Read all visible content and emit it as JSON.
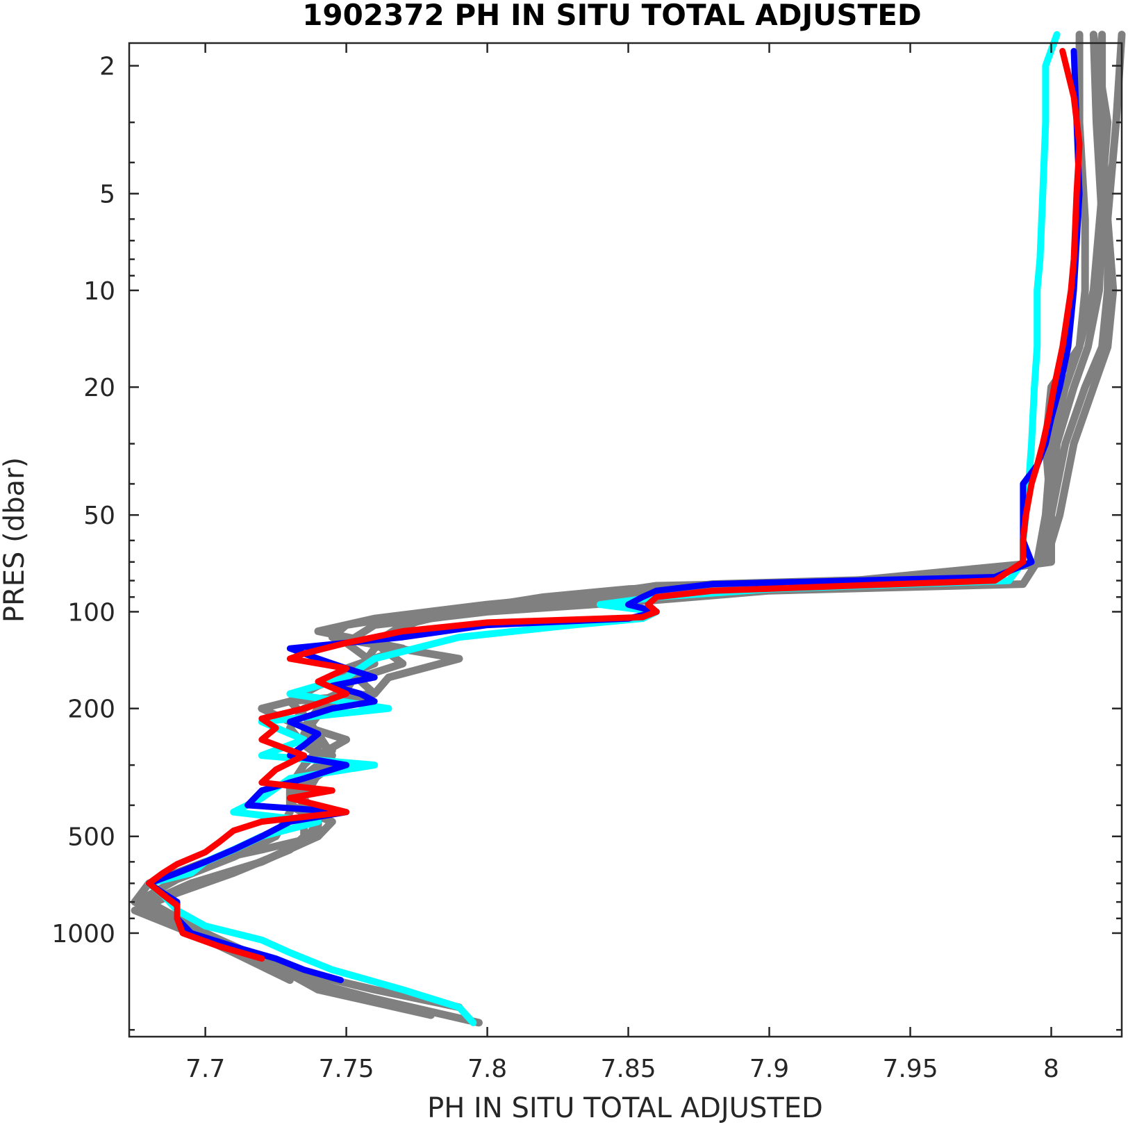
{
  "chart_data": {
    "type": "line",
    "title": "1902372  PH IN SITU TOTAL ADJUSTED",
    "xlabel": "PH IN SITU TOTAL ADJUSTED",
    "ylabel": "PRES (dbar)",
    "xlim": [
      7.673,
      8.025
    ],
    "ylim": [
      1.7,
      2100
    ],
    "y_scale": "log",
    "y_reversed": true,
    "grid": false,
    "x_ticks": [
      7.7,
      7.75,
      7.8,
      7.85,
      7.9,
      7.95,
      8.0
    ],
    "x_tick_labels": [
      "7.7",
      "7.75",
      "7.8",
      "7.85",
      "7.9",
      "7.95",
      "8"
    ],
    "y_ticks": [
      2,
      5,
      10,
      20,
      50,
      100,
      200,
      500,
      1000
    ],
    "y_tick_labels": [
      "2",
      "5",
      "10",
      "20",
      "50",
      "100",
      "200",
      "500",
      "1000"
    ],
    "colors": {
      "history": "#808080",
      "cyan": "#00ffff",
      "blue": "#0000ff",
      "red": "#ff0000"
    },
    "series": [
      {
        "color_key": "history",
        "pres": [
          1.6,
          3,
          5,
          10,
          15,
          20,
          30,
          50,
          70,
          80,
          83,
          88,
          95,
          105,
          115,
          130,
          150,
          180,
          190,
          200,
          220,
          250,
          280,
          300,
          350,
          400,
          450,
          500,
          550,
          600,
          700,
          800,
          1000,
          1200,
          1400,
          1600,
          1900
        ],
        "ph": [
          8.015,
          8.02,
          8.018,
          8.015,
          8.01,
          8.0,
          7.998,
          8.0,
          8.0,
          7.95,
          7.86,
          7.84,
          7.8,
          7.76,
          7.74,
          7.77,
          7.75,
          7.76,
          7.73,
          7.72,
          7.73,
          7.75,
          7.74,
          7.745,
          7.735,
          7.73,
          7.74,
          7.74,
          7.72,
          7.7,
          7.68,
          7.675,
          7.7,
          7.72,
          7.735,
          7.76,
          7.797
        ]
      },
      {
        "color_key": "history",
        "pres": [
          1.6,
          3,
          6,
          10,
          15,
          20,
          30,
          50,
          70,
          78,
          82,
          87,
          92,
          100,
          110,
          120,
          140,
          160,
          180,
          200,
          230,
          270,
          300,
          350,
          400,
          450,
          500,
          600,
          700,
          800,
          1000,
          1200,
          1500,
          1800
        ],
        "ph": [
          8.025,
          8.023,
          8.02,
          8.02,
          8.018,
          8.012,
          8.005,
          8.0,
          7.995,
          7.97,
          7.88,
          7.85,
          7.82,
          7.78,
          7.75,
          7.745,
          7.79,
          7.765,
          7.76,
          7.74,
          7.735,
          7.74,
          7.735,
          7.73,
          7.73,
          7.745,
          7.74,
          7.72,
          7.695,
          7.68,
          7.7,
          7.72,
          7.74,
          7.78
        ]
      },
      {
        "color_key": "history",
        "pres": [
          1.6,
          3,
          6,
          10,
          15,
          20,
          30,
          50,
          70,
          80,
          84,
          90,
          100,
          110,
          125,
          145,
          165,
          185,
          210,
          240,
          270,
          300,
          350,
          400,
          450,
          500,
          550,
          650,
          750,
          850,
          1000,
          1100,
          1300,
          1500,
          1700
        ],
        "ph": [
          8.018,
          8.018,
          8.02,
          8.022,
          8.02,
          8.015,
          8.008,
          8.003,
          7.998,
          7.96,
          7.87,
          7.845,
          7.79,
          7.77,
          7.76,
          7.77,
          7.75,
          7.75,
          7.74,
          7.735,
          7.745,
          7.74,
          7.73,
          7.735,
          7.735,
          7.735,
          7.73,
          7.71,
          7.69,
          7.675,
          7.695,
          7.71,
          7.73,
          7.76,
          7.79
        ]
      },
      {
        "color_key": "history",
        "pres": [
          1.6,
          3,
          6,
          10,
          15,
          20,
          30,
          50,
          70,
          82,
          86,
          92,
          100,
          110,
          125,
          145,
          170,
          190,
          210,
          240,
          280,
          320,
          380,
          450,
          520,
          600,
          700,
          800,
          950,
          1150,
          1400
        ],
        "ph": [
          8.01,
          8.01,
          8.012,
          8.012,
          8.01,
          8.005,
          8.0,
          7.998,
          7.995,
          7.99,
          7.9,
          7.86,
          7.8,
          7.76,
          7.75,
          7.76,
          7.74,
          7.73,
          7.735,
          7.74,
          7.745,
          7.74,
          7.735,
          7.74,
          7.735,
          7.72,
          7.695,
          7.68,
          7.69,
          7.71,
          7.73
        ]
      },
      {
        "color_key": "history",
        "pres": [
          1.6,
          3,
          6,
          10,
          15,
          20,
          30,
          50,
          70,
          80,
          85,
          90,
          96,
          103,
          112,
          130,
          150,
          175,
          200,
          230,
          260,
          300,
          350,
          420,
          500,
          580,
          680,
          780,
          900,
          1050,
          1300,
          1600
        ],
        "ph": [
          8.015,
          8.016,
          8.018,
          8.017,
          8.013,
          8.008,
          8.002,
          8.0,
          7.998,
          7.93,
          7.85,
          7.82,
          7.8,
          7.78,
          7.77,
          7.76,
          7.755,
          7.75,
          7.735,
          7.73,
          7.735,
          7.745,
          7.73,
          7.73,
          7.725,
          7.71,
          7.69,
          7.678,
          7.69,
          7.705,
          7.725,
          7.755
        ]
      },
      {
        "color_key": "cyan",
        "pres": [
          1.6,
          2,
          3,
          5,
          8,
          10,
          15,
          20,
          30,
          40,
          50,
          60,
          70,
          80,
          85,
          90,
          95,
          100,
          105,
          110,
          120,
          140,
          160,
          180,
          200,
          220,
          250,
          280,
          300,
          330,
          380,
          420,
          450,
          500,
          550,
          600,
          650,
          700,
          760,
          850,
          950,
          1050,
          1150,
          1300,
          1500,
          1700,
          1900
        ],
        "ph": [
          8.002,
          7.998,
          7.998,
          7.997,
          7.996,
          7.995,
          7.995,
          7.994,
          7.993,
          7.992,
          7.991,
          7.99,
          7.99,
          7.985,
          7.9,
          7.86,
          7.84,
          7.86,
          7.855,
          7.83,
          7.79,
          7.76,
          7.75,
          7.73,
          7.765,
          7.72,
          7.735,
          7.72,
          7.76,
          7.73,
          7.72,
          7.71,
          7.74,
          7.72,
          7.71,
          7.7,
          7.695,
          7.68,
          7.685,
          7.69,
          7.7,
          7.72,
          7.73,
          7.745,
          7.77,
          7.79,
          7.795
        ]
      },
      {
        "color_key": "blue",
        "pres": [
          1.8,
          3,
          5,
          10,
          15,
          20,
          25,
          30,
          35,
          40,
          50,
          55,
          60,
          70,
          78,
          82,
          86,
          90,
          95,
          100,
          105,
          110,
          120,
          130,
          140,
          150,
          160,
          170,
          180,
          190,
          200,
          220,
          240,
          260,
          280,
          300,
          330,
          360,
          400,
          420,
          450,
          500,
          550,
          600,
          650,
          700,
          750,
          800,
          900,
          1000,
          1100,
          1200,
          1300,
          1400
        ],
        "ph": [
          8.008,
          8.009,
          8.01,
          8.008,
          8.006,
          8.003,
          8.0,
          7.998,
          7.995,
          7.99,
          7.99,
          7.99,
          7.99,
          7.993,
          7.98,
          7.88,
          7.86,
          7.855,
          7.85,
          7.86,
          7.85,
          7.8,
          7.77,
          7.73,
          7.74,
          7.75,
          7.76,
          7.745,
          7.755,
          7.76,
          7.745,
          7.73,
          7.74,
          7.735,
          7.73,
          7.75,
          7.735,
          7.72,
          7.715,
          7.75,
          7.73,
          7.72,
          7.71,
          7.7,
          7.69,
          7.68,
          7.685,
          7.69,
          7.69,
          7.695,
          7.71,
          7.725,
          7.735,
          7.748
        ]
      },
      {
        "color_key": "red",
        "pres": [
          1.8,
          2.5,
          3.5,
          5,
          8,
          10,
          15,
          20,
          25,
          30,
          35,
          40,
          50,
          60,
          70,
          80,
          86,
          90,
          95,
          100,
          104,
          108,
          115,
          125,
          135,
          140,
          150,
          165,
          180,
          200,
          215,
          230,
          250,
          280,
          310,
          340,
          360,
          380,
          420,
          450,
          480,
          520,
          560,
          610,
          650,
          700,
          760,
          820,
          900,
          1000,
          1100,
          1200
        ],
        "ph": [
          8.004,
          8.008,
          8.01,
          8.009,
          8.008,
          8.007,
          8.004,
          8.001,
          7.999,
          7.997,
          7.995,
          7.993,
          7.991,
          7.99,
          7.99,
          7.98,
          7.88,
          7.86,
          7.857,
          7.86,
          7.855,
          7.8,
          7.77,
          7.75,
          7.735,
          7.73,
          7.75,
          7.74,
          7.75,
          7.735,
          7.72,
          7.725,
          7.72,
          7.735,
          7.725,
          7.72,
          7.745,
          7.73,
          7.75,
          7.72,
          7.71,
          7.705,
          7.7,
          7.69,
          7.685,
          7.68,
          7.685,
          7.69,
          7.69,
          7.692,
          7.705,
          7.72
        ]
      }
    ]
  }
}
